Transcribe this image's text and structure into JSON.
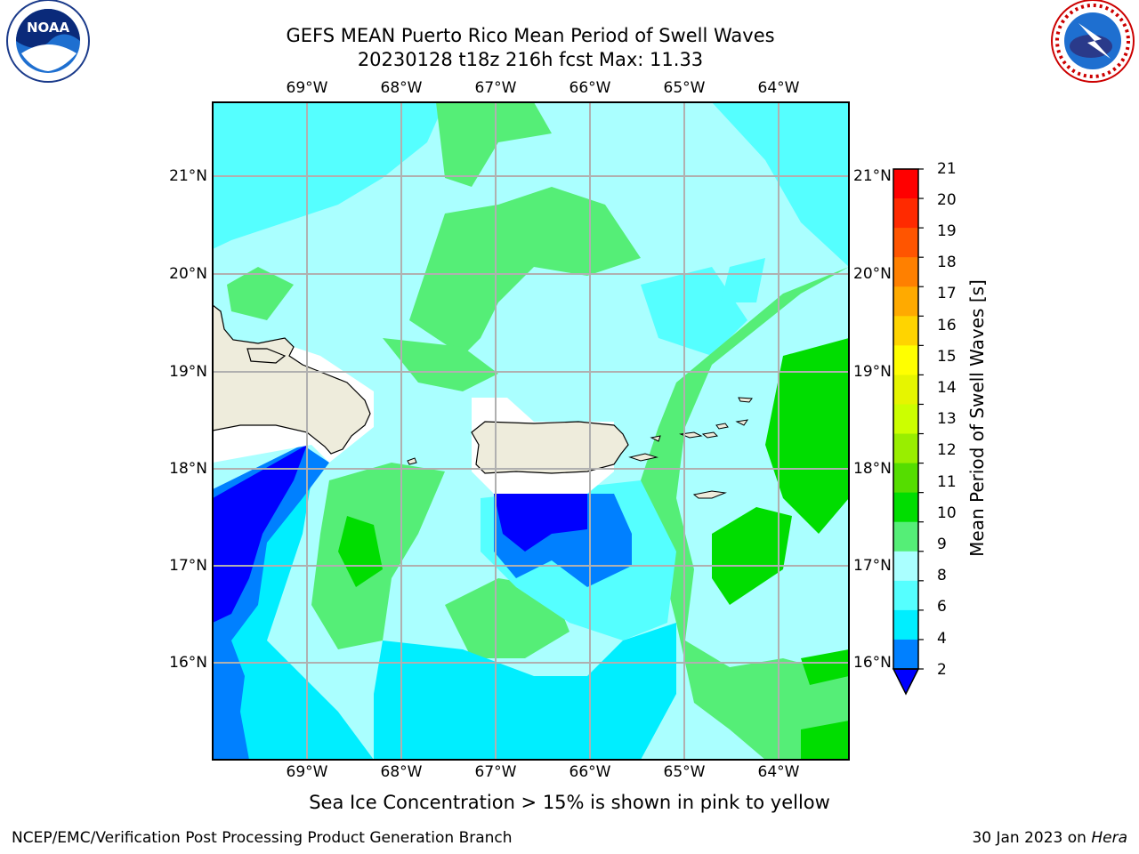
{
  "title": {
    "line1": "GEFS MEAN Puerto Rico Mean Period of Swell Waves",
    "line2": "20230128 t18z 216h fcst   Max: 11.33"
  },
  "logos": {
    "left": "noaa-logo",
    "right": "national-weather-service-logo"
  },
  "map": {
    "lon_labels": [
      "69°W",
      "68°W",
      "67°W",
      "66°W",
      "65°W",
      "64°W"
    ],
    "lat_labels": [
      "21°N",
      "20°N",
      "19°N",
      "18°N",
      "17°N",
      "16°N"
    ],
    "land_color": "#eeecdc",
    "grid_color": "#b0b0b0"
  },
  "colorbar": {
    "title": "Mean Period of Swell Waves [s]",
    "ticks": [
      "21",
      "20",
      "19",
      "18",
      "17",
      "16",
      "15",
      "14",
      "13",
      "12",
      "11",
      "10",
      "9",
      "8",
      "6",
      "4",
      "2"
    ],
    "colors": [
      "#ff0000",
      "#ff2a00",
      "#ff5500",
      "#ff8000",
      "#ffaa00",
      "#ffd400",
      "#ffff00",
      "#e6f500",
      "#ccff00",
      "#99ee00",
      "#55dd00",
      "#00dd00",
      "#55ee77",
      "#aaffff",
      "#55ffff",
      "#00eeff",
      "#0080ff",
      "#0000ff"
    ]
  },
  "notes": {
    "sea_ice": "Sea Ice Concentration > 15% is shown in pink to yellow",
    "footer_left": "NCEP/EMC/Verification Post Processing Product Generation Branch",
    "footer_date": "30 Jan 2023 on ",
    "footer_host": "Hera"
  }
}
